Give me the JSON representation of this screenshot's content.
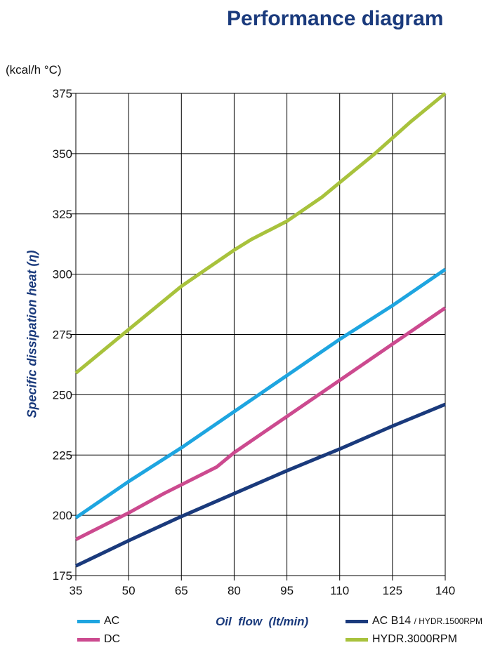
{
  "chart_data": {
    "type": "line",
    "title": "Performance diagram",
    "unit_label": "(kcal/h °C)",
    "ylabel": "Specific dissipation heat (η)",
    "xlabel": "Oil  flow  (lt/min)",
    "xticks": [
      35,
      50,
      65,
      80,
      95,
      110,
      125,
      140
    ],
    "yticks": [
      175,
      200,
      225,
      250,
      275,
      300,
      325,
      350,
      375
    ],
    "xlim": [
      35,
      140
    ],
    "ylim": [
      175,
      375
    ],
    "grid": true,
    "legend_position": "bottom",
    "series": [
      {
        "name": "AC",
        "color": "#1ea5e0",
        "x": [
          35,
          50,
          65,
          80,
          95,
          110,
          125,
          140
        ],
        "y": [
          199,
          214,
          228,
          243,
          258,
          273,
          287,
          302
        ]
      },
      {
        "name": "DC",
        "color": "#cc4a8f",
        "x": [
          35,
          50,
          60,
          75,
          80,
          95,
          110,
          125,
          140
        ],
        "y": [
          190,
          201,
          209,
          220,
          226,
          241,
          256,
          271,
          286
        ]
      },
      {
        "name": "AC B14",
        "name_extra": "/ HYDR.1500RPM",
        "color": "#1a3a7c",
        "x": [
          35,
          50,
          65,
          80,
          95,
          110,
          125,
          140
        ],
        "y": [
          179,
          189.5,
          199.5,
          209,
          218.5,
          227.5,
          237,
          246
        ]
      },
      {
        "name": "HYDR.3000RPM",
        "color": "#a8c23c",
        "x": [
          35,
          50,
          65,
          75,
          80,
          85,
          95,
          105,
          110,
          120,
          130,
          140
        ],
        "y": [
          259,
          277,
          295,
          305,
          310,
          314.5,
          322,
          332,
          338,
          350,
          363,
          375
        ]
      }
    ]
  }
}
